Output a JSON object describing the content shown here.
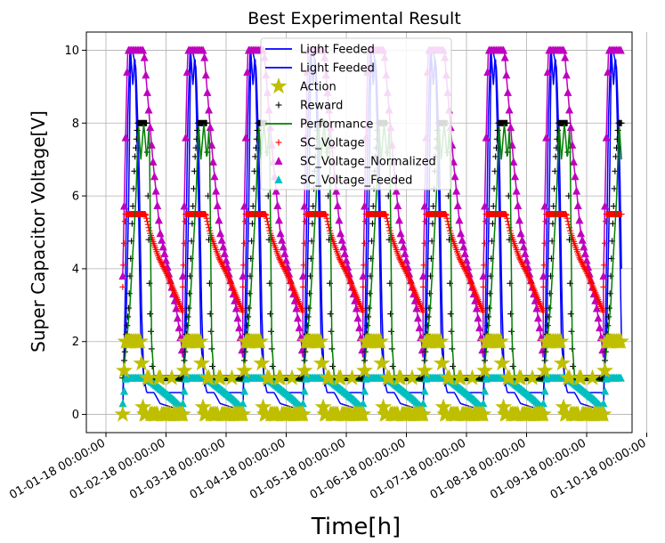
{
  "chart_data": {
    "type": "line",
    "title": "Best Experimental Result",
    "xlabel": "Time[h]",
    "ylabel": "Super Capacitor Voltage[V]",
    "ylim": [
      -0.5,
      10.5
    ],
    "yticks": [
      0,
      2,
      4,
      6,
      8,
      10
    ],
    "xlim_days": [
      0,
      9.15
    ],
    "xticks": [
      {
        "day": 0,
        "label": "01-01-18 00:00:00"
      },
      {
        "day": 1,
        "label": "01-02-18 00:00:00"
      },
      {
        "day": 2,
        "label": "01-03-18 00:00:00"
      },
      {
        "day": 3,
        "label": "01-04-18 00:00:00"
      },
      {
        "day": 4,
        "label": "01-05-18 00:00:00"
      },
      {
        "day": 5,
        "label": "01-06-18 00:00:00"
      },
      {
        "day": 6,
        "label": "01-07-18 00:00:00"
      },
      {
        "day": 7,
        "label": "01-08-18 00:00:00"
      },
      {
        "day": 8,
        "label": "01-09-18 00:00:00"
      },
      {
        "day": 9,
        "label": "01-10-18 00:00:00"
      }
    ],
    "grid": true,
    "legend_placement": "top-center",
    "cycles_start_day": 0.28,
    "cycle_length_days": 1,
    "cycle_count": 9,
    "series": [
      {
        "name": "Light Feeded",
        "color": "#0000ff",
        "marker": "none",
        "profile": [
          [
            0,
            0.1
          ],
          [
            0.04,
            3
          ],
          [
            0.08,
            8
          ],
          [
            0.12,
            10
          ],
          [
            0.16,
            10
          ],
          [
            0.22,
            9.5
          ],
          [
            0.27,
            7
          ],
          [
            0.31,
            3
          ],
          [
            0.35,
            1
          ],
          [
            0.4,
            0.6
          ],
          [
            0.52,
            0.6
          ],
          [
            0.62,
            0.3
          ],
          [
            1,
            0.1
          ]
        ]
      },
      {
        "name": "Light Feeded",
        "color": "#0000ff",
        "marker": "none",
        "profile": [
          [
            0,
            0.6
          ],
          [
            0.05,
            2
          ],
          [
            0.1,
            6
          ],
          [
            0.13,
            10
          ],
          [
            0.17,
            9
          ],
          [
            0.2,
            10
          ],
          [
            0.26,
            6
          ],
          [
            0.3,
            2
          ],
          [
            0.36,
            0.8
          ],
          [
            0.45,
            1
          ],
          [
            0.6,
            0.6
          ],
          [
            1,
            0.6
          ]
        ]
      },
      {
        "name": "Action",
        "color": "#bfbf00",
        "marker": "star",
        "profile": [
          [
            0,
            0
          ],
          [
            0.04,
            2
          ],
          [
            0.3,
            2
          ],
          [
            0.34,
            0
          ],
          [
            0.55,
            1
          ],
          [
            0.58,
            0
          ],
          [
            1,
            0
          ]
        ]
      },
      {
        "name": "Reward",
        "color": "#000000",
        "marker": "plus",
        "profile": [
          [
            0,
            1
          ],
          [
            0.1,
            3
          ],
          [
            0.2,
            7
          ],
          [
            0.25,
            8
          ],
          [
            0.4,
            8
          ],
          [
            0.45,
            3
          ],
          [
            0.5,
            1
          ],
          [
            1,
            1
          ]
        ]
      },
      {
        "name": "Performance",
        "color": "#008000",
        "marker": "none",
        "profile": [
          [
            0,
            0.9
          ],
          [
            0.12,
            3
          ],
          [
            0.22,
            6
          ],
          [
            0.26,
            8
          ],
          [
            0.3,
            7
          ],
          [
            0.35,
            8
          ],
          [
            0.4,
            7
          ],
          [
            0.44,
            8
          ],
          [
            0.48,
            2
          ],
          [
            0.52,
            1
          ],
          [
            1,
            0.9
          ]
        ]
      },
      {
        "name": "SC_Voltage",
        "color": "#ff0000",
        "marker": "plus",
        "profile": [
          [
            0,
            3.5
          ],
          [
            0.04,
            5.5
          ],
          [
            0.38,
            5.5
          ],
          [
            0.45,
            5
          ],
          [
            0.6,
            4.3
          ],
          [
            0.75,
            3.8
          ],
          [
            0.9,
            3.2
          ],
          [
            1,
            2.8
          ]
        ]
      },
      {
        "name": "SC_Voltage_Normalized",
        "color": "#bf00bf",
        "marker": "triangle",
        "profile": [
          [
            0,
            3.8
          ],
          [
            0.04,
            7
          ],
          [
            0.08,
            10
          ],
          [
            0.35,
            10
          ],
          [
            0.4,
            9
          ],
          [
            0.5,
            7
          ],
          [
            0.62,
            5
          ],
          [
            0.75,
            4
          ],
          [
            0.88,
            3
          ],
          [
            0.97,
            2
          ],
          [
            1,
            1.5
          ]
        ]
      },
      {
        "name": "SC_Voltage_Feeded",
        "color": "#00bfbf",
        "marker": "triangle",
        "profile": [
          [
            0,
            0.3
          ],
          [
            0.05,
            1
          ],
          [
            0.4,
            1
          ],
          [
            0.55,
            0.8
          ],
          [
            0.7,
            0.6
          ],
          [
            0.85,
            0.4
          ],
          [
            1,
            0.15
          ]
        ]
      }
    ]
  }
}
